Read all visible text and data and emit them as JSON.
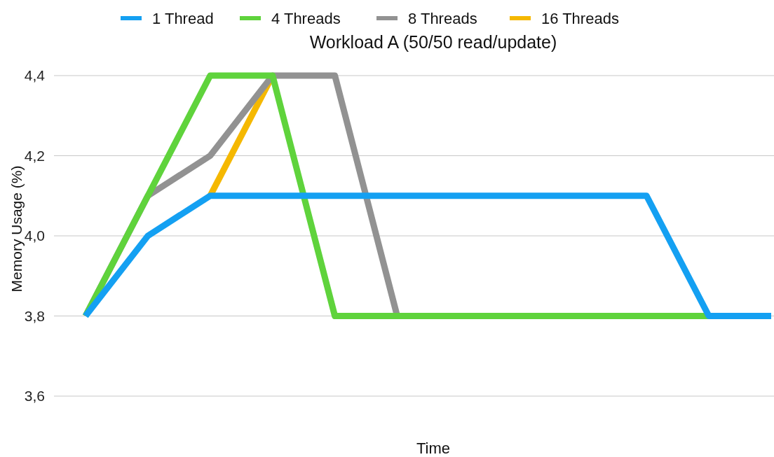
{
  "chart_data": {
    "type": "line",
    "title": "Workload A (50/50 read/update)",
    "xlabel": "Time",
    "ylabel": "Memory Usage (%)",
    "categories": [
      null,
      null,
      null,
      null,
      null,
      null,
      null,
      null,
      null,
      null,
      null,
      null
    ],
    "series": [
      {
        "name": "1 Thread",
        "color": "#14a0f2",
        "values": [
          3.8,
          4.0,
          4.1,
          4.1,
          4.1,
          4.1,
          4.1,
          4.1,
          4.1,
          4.1,
          3.8,
          3.8
        ]
      },
      {
        "name": "4 Threads",
        "color": "#5fd33c",
        "values": [
          3.8,
          4.1,
          4.4,
          4.4,
          3.8,
          3.8,
          3.8,
          3.8,
          3.8,
          3.8,
          3.8,
          null
        ]
      },
      {
        "name": "8 Threads",
        "color": "#929292",
        "values": [
          3.8,
          4.1,
          4.2,
          4.4,
          4.4,
          3.8,
          null,
          null,
          null,
          null,
          null,
          null
        ]
      },
      {
        "name": "16 Threads",
        "color": "#f5b800",
        "values": [
          null,
          null,
          4.1,
          4.4,
          null,
          null,
          null,
          null,
          null,
          null,
          null,
          null
        ]
      }
    ],
    "ylim": [
      3.6,
      4.4
    ],
    "yticks": [
      {
        "value": 3.6,
        "label": "3,6"
      },
      {
        "value": 3.8,
        "label": "3,8"
      },
      {
        "value": 4.0,
        "label": "4,0"
      },
      {
        "value": 4.2,
        "label": "4,2"
      },
      {
        "value": 4.4,
        "label": "4,4"
      }
    ],
    "grid": "y",
    "legend": "top",
    "line_style": "solid"
  }
}
